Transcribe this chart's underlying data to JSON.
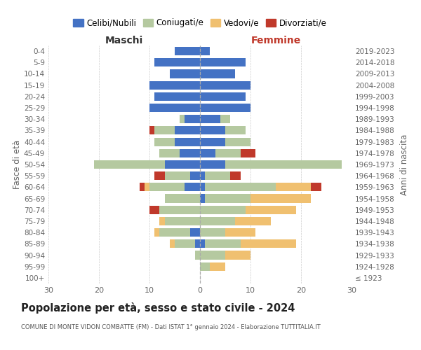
{
  "age_groups": [
    "100+",
    "95-99",
    "90-94",
    "85-89",
    "80-84",
    "75-79",
    "70-74",
    "65-69",
    "60-64",
    "55-59",
    "50-54",
    "45-49",
    "40-44",
    "35-39",
    "30-34",
    "25-29",
    "20-24",
    "15-19",
    "10-14",
    "5-9",
    "0-4"
  ],
  "birth_years": [
    "≤ 1923",
    "1924-1928",
    "1929-1933",
    "1934-1938",
    "1939-1943",
    "1944-1948",
    "1949-1953",
    "1954-1958",
    "1959-1963",
    "1964-1968",
    "1969-1973",
    "1974-1978",
    "1979-1983",
    "1984-1988",
    "1989-1993",
    "1994-1998",
    "1999-2003",
    "2004-2008",
    "2009-2013",
    "2014-2018",
    "2019-2023"
  ],
  "colors": {
    "celibe": "#4472c4",
    "coniugato": "#b5c9a0",
    "vedovo": "#f0c070",
    "divorziato": "#c0392b"
  },
  "maschi": {
    "celibe": [
      0,
      0,
      0,
      1,
      2,
      0,
      0,
      0,
      3,
      2,
      7,
      4,
      5,
      5,
      3,
      10,
      9,
      10,
      6,
      9,
      5
    ],
    "coniugato": [
      0,
      0,
      1,
      4,
      6,
      7,
      8,
      7,
      7,
      5,
      14,
      4,
      4,
      4,
      1,
      0,
      0,
      0,
      0,
      0,
      0
    ],
    "vedovo": [
      0,
      0,
      0,
      1,
      1,
      1,
      0,
      0,
      1,
      0,
      0,
      0,
      0,
      0,
      0,
      0,
      0,
      0,
      0,
      0,
      0
    ],
    "divorziato": [
      0,
      0,
      0,
      0,
      0,
      0,
      2,
      0,
      1,
      2,
      0,
      0,
      0,
      1,
      0,
      0,
      0,
      0,
      0,
      0,
      0
    ]
  },
  "femmine": {
    "nubile": [
      0,
      0,
      0,
      1,
      0,
      0,
      0,
      1,
      1,
      1,
      5,
      3,
      5,
      5,
      4,
      10,
      9,
      10,
      7,
      9,
      2
    ],
    "coniugata": [
      0,
      2,
      5,
      7,
      5,
      7,
      9,
      9,
      14,
      5,
      23,
      5,
      5,
      4,
      2,
      0,
      0,
      0,
      0,
      0,
      0
    ],
    "vedova": [
      0,
      3,
      5,
      11,
      6,
      7,
      10,
      12,
      7,
      0,
      0,
      0,
      0,
      0,
      0,
      0,
      0,
      0,
      0,
      0,
      0
    ],
    "divorziata": [
      0,
      0,
      0,
      0,
      0,
      0,
      0,
      0,
      2,
      2,
      0,
      3,
      0,
      0,
      0,
      0,
      0,
      0,
      0,
      0,
      0
    ]
  },
  "xlim": 30,
  "title": "Popolazione per età, sesso e stato civile - 2024",
  "subtitle": "COMUNE DI MONTE VIDON COMBATTE (FM) - Dati ISTAT 1° gennaio 2024 - Elaborazione TUTTITALIA.IT",
  "ylabel_left": "Fasce di età",
  "ylabel_right": "Anni di nascita",
  "legend_labels": [
    "Celibi/Nubili",
    "Coniugati/e",
    "Vedovi/e",
    "Divorziati/e"
  ],
  "maschi_label": "Maschi",
  "femmine_label": "Femmine",
  "maschi_color": "#333333",
  "femmine_color": "#c0392b",
  "axis_color": "#666666",
  "grid_color": "#cccccc",
  "center_line_color": "#aaaaaa",
  "bg_color": "#ffffff"
}
